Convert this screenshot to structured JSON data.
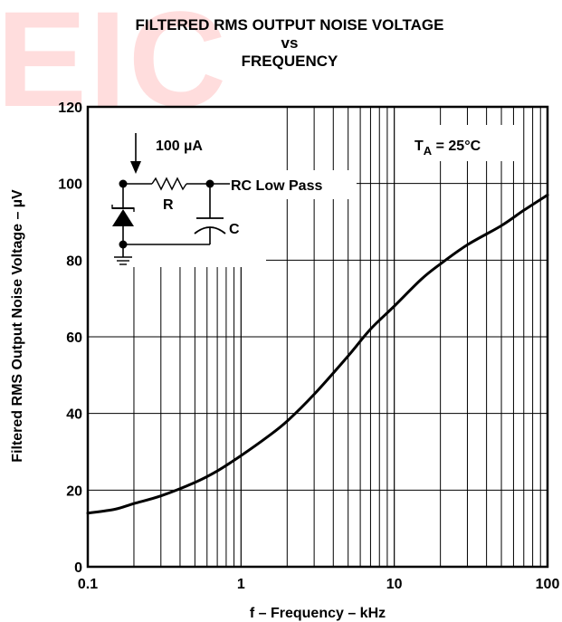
{
  "watermark": "EIC",
  "chart_data": {
    "type": "line",
    "title_lines": [
      "FILTERED RMS OUTPUT NOISE VOLTAGE",
      "vs",
      "FREQUENCY"
    ],
    "xlabel": "f – Frequency – kHz",
    "ylabel": "Filtered RMS Output Noise Voltage – µV",
    "x_scale": "log",
    "xlim": [
      0.1,
      100
    ],
    "ylim": [
      0,
      120
    ],
    "x_ticks": [
      {
        "value": 0.1,
        "label": "0.1"
      },
      {
        "value": 1,
        "label": "1"
      },
      {
        "value": 10,
        "label": "10"
      },
      {
        "value": 100,
        "label": "100"
      }
    ],
    "y_ticks": [
      {
        "value": 0,
        "label": "0"
      },
      {
        "value": 20,
        "label": "20"
      },
      {
        "value": 40,
        "label": "40"
      },
      {
        "value": 60,
        "label": "60"
      },
      {
        "value": 80,
        "label": "80"
      },
      {
        "value": 100,
        "label": "100"
      },
      {
        "value": 120,
        "label": "120"
      }
    ],
    "grid": true,
    "series": [
      {
        "x": [
          0.1,
          0.15,
          0.2,
          0.3,
          0.5,
          0.7,
          1,
          1.5,
          2,
          3,
          5,
          7,
          10,
          15,
          20,
          30,
          50,
          70,
          100
        ],
        "y": [
          14,
          15,
          16.5,
          18.5,
          22,
          25,
          29,
          34,
          38,
          45,
          55,
          62,
          68,
          75,
          79,
          84,
          89,
          93,
          97
        ]
      }
    ],
    "annotations": {
      "temperature": "T",
      "temperature_sub": "A",
      "temperature_rest": " = 25°C",
      "current": "100 µA",
      "resistor": "R",
      "capacitor": "C",
      "filter": "RC Low Pass"
    },
    "colors": {
      "line": "#000000",
      "grid": "#000000",
      "watermark": "#ff0000"
    }
  }
}
